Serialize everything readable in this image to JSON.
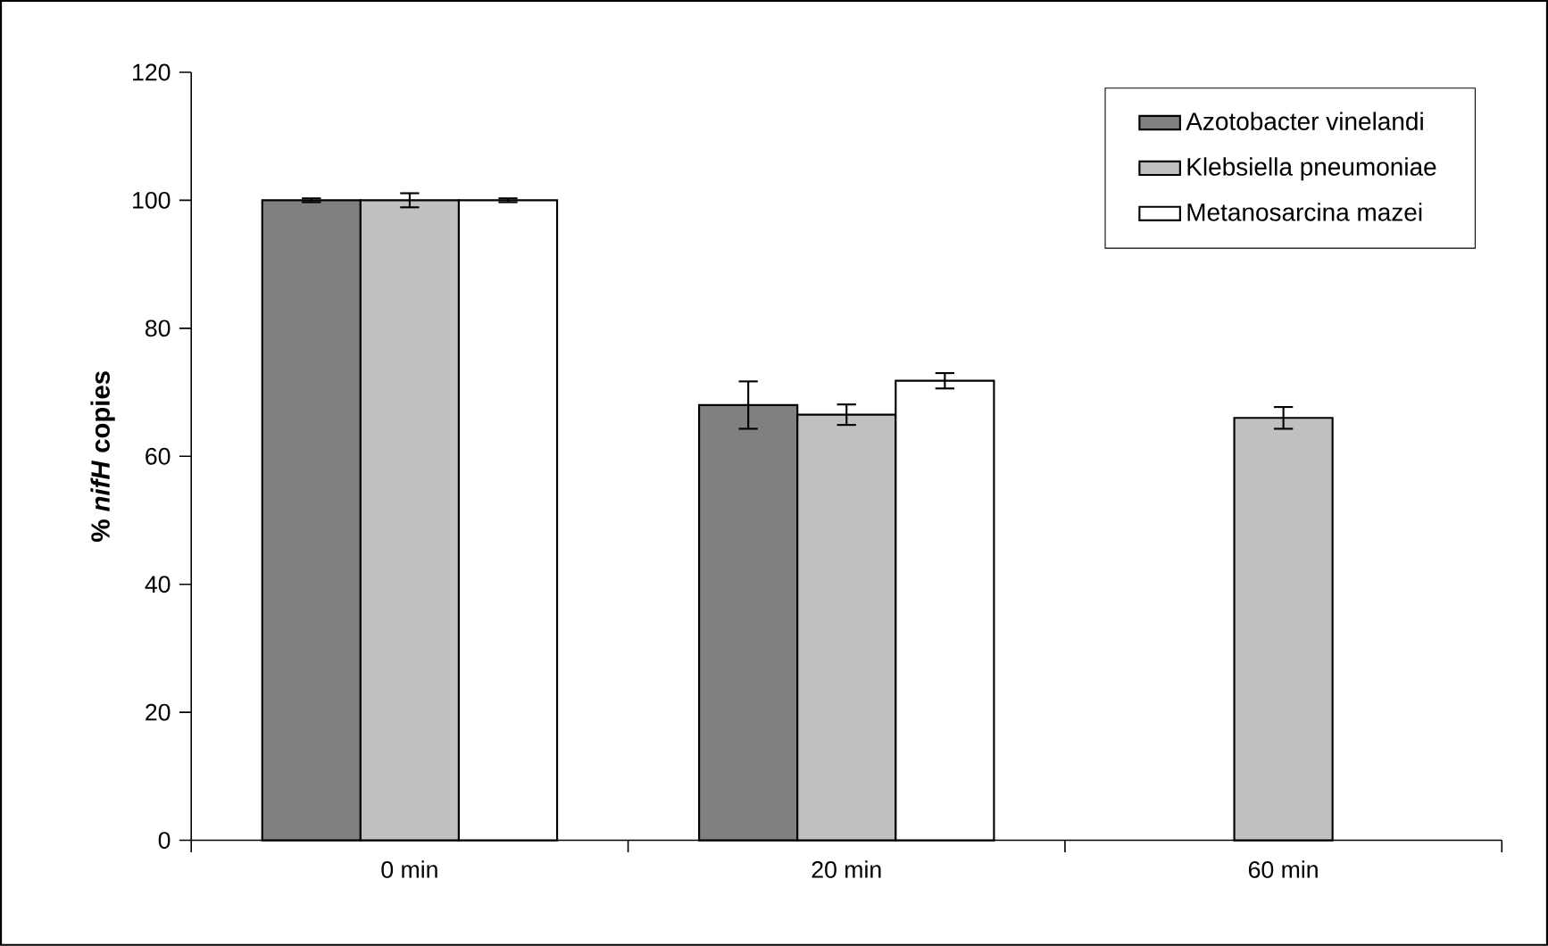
{
  "chart_data": {
    "type": "bar",
    "ylabel": "% *nifH* copies",
    "categories": [
      "0 min",
      "20 min",
      "60 min"
    ],
    "series": [
      {
        "name": "Azotobacter vinelandi",
        "color": "#808080",
        "values": [
          100,
          68,
          null
        ],
        "errors": [
          0.3,
          3.7,
          null
        ]
      },
      {
        "name": "Klebsiella pneumoniae",
        "color": "#c0c0c0",
        "values": [
          100,
          66.5,
          66
        ],
        "errors": [
          1.1,
          1.6,
          1.7
        ]
      },
      {
        "name": "Metanosarcina mazei",
        "color": "#ffffff",
        "values": [
          100,
          71.8,
          null
        ],
        "errors": [
          0.3,
          1.2,
          null
        ]
      }
    ],
    "ylim": [
      0,
      120
    ],
    "yticks": [
      0,
      20,
      40,
      60,
      80,
      100,
      120
    ],
    "legend": "top right",
    "grid": false
  }
}
